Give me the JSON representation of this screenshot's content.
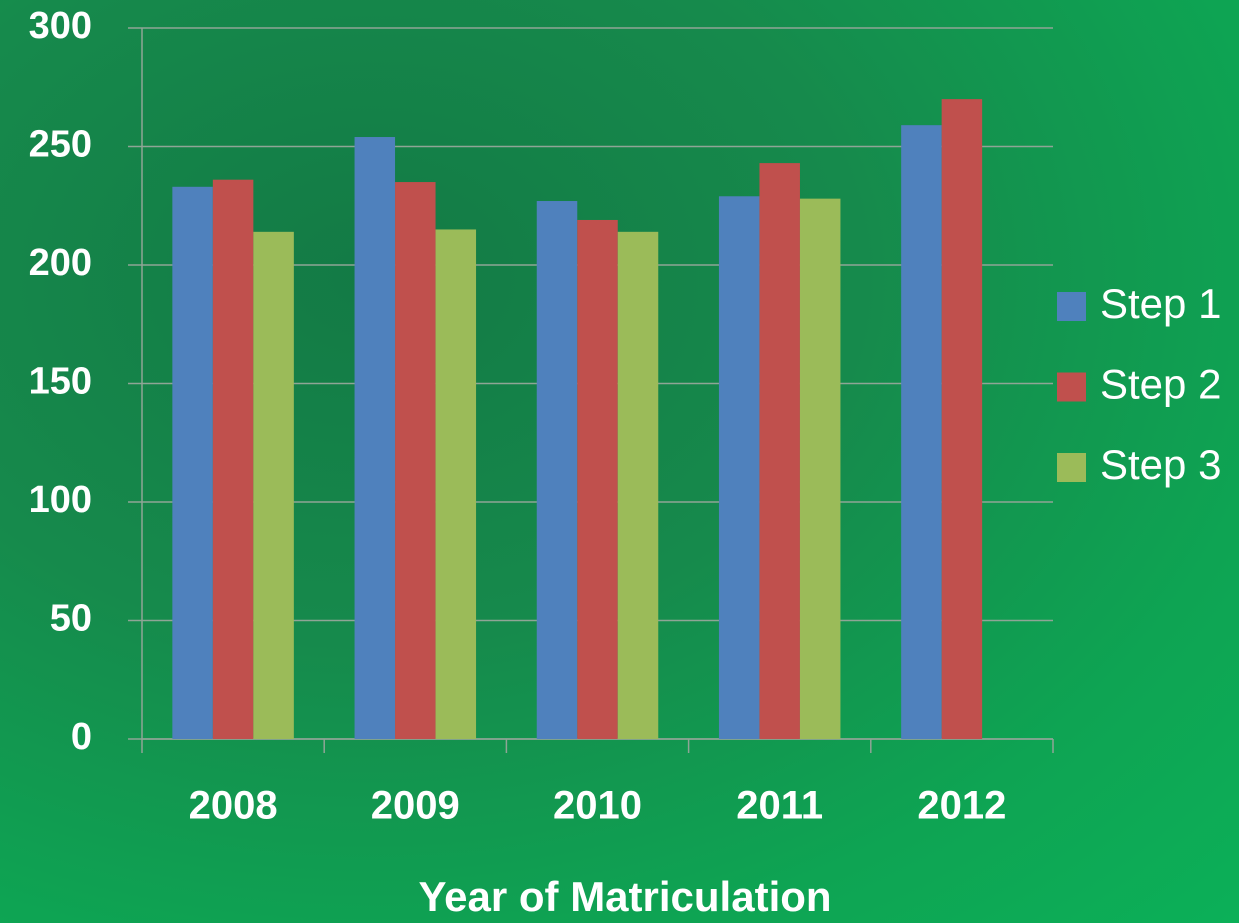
{
  "chart_data": {
    "type": "bar",
    "x_label": "Year of Matriculation",
    "categories": [
      "2008",
      "2009",
      "2010",
      "2011",
      "2012"
    ],
    "series": [
      {
        "name": "Step 1",
        "color": "#4f81bd",
        "values": [
          233,
          254,
          227,
          229,
          259
        ]
      },
      {
        "name": "Step 2",
        "color": "#c0504d",
        "values": [
          236,
          235,
          219,
          243,
          270
        ]
      },
      {
        "name": "Step 3",
        "color": "#9bbb59",
        "values": [
          214,
          215,
          214,
          228,
          null
        ]
      }
    ],
    "ylim": [
      0,
      300
    ],
    "yticks": [
      0,
      50,
      100,
      150,
      200,
      250,
      300
    ],
    "grid": true,
    "legend": "right"
  }
}
